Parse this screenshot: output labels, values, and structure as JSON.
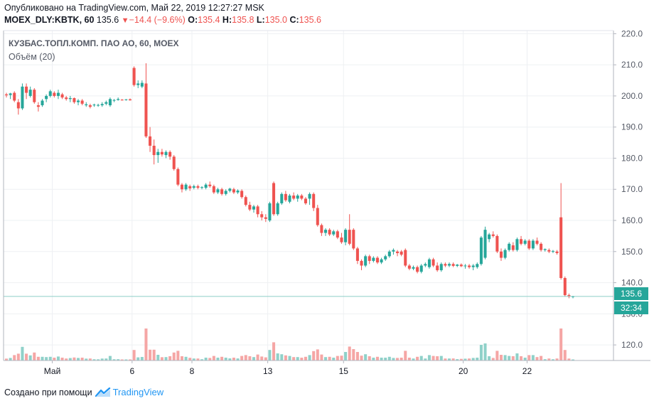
{
  "header": {
    "published": "Опубликовано на TradingView.com, Май 22, 2019 12:27:27 MSK",
    "symbol": "MOEX_DLY:KBTK, 60",
    "last": "135.6",
    "change": "−14.4 (−9.6%)",
    "o_label": "O:",
    "o_value": "135.4",
    "h_label": "H:",
    "h_value": "135.8",
    "l_label": "L:",
    "l_value": "135.0",
    "c_label": "C:",
    "c_value": "135.6"
  },
  "legend": {
    "title": "КУЗБАС.ТОПЛ.КОМП. ПАО АО, 60, MOEX",
    "volume": "Объём (20)"
  },
  "price_badge": "135.6",
  "time_badge": "32:34",
  "footer": {
    "created_with": "Создано при помощи",
    "brand": "TradingView"
  },
  "colors": {
    "up": "#26a69a",
    "down": "#ef5350",
    "up_volume": "#8fd1c9",
    "down_volume": "#f5a6a5",
    "grid": "#eef0f3",
    "price_line": "#8ccfc8"
  },
  "chart_data": {
    "type": "candlestick",
    "ylim": [
      115,
      221
    ],
    "y_ticks": [
      "120.0",
      "130.0",
      "140.0",
      "150.0",
      "160.0",
      "170.0",
      "180.0",
      "190.0",
      "200.0",
      "210.0",
      "220.0"
    ],
    "x_ticks": [
      "Май",
      "6",
      "8",
      "13",
      "15",
      "20",
      "22"
    ],
    "last_price": 135.6,
    "candles": [
      {
        "o": 200.5,
        "h": 201.0,
        "l": 199.5,
        "c": 200.2
      },
      {
        "o": 200.3,
        "h": 201.0,
        "l": 199.0,
        "c": 200.8
      },
      {
        "o": 201.0,
        "h": 201.5,
        "l": 198.0,
        "c": 198.5
      },
      {
        "o": 198.0,
        "h": 199.0,
        "l": 194.0,
        "c": 196.0
      },
      {
        "o": 196.0,
        "h": 204.0,
        "l": 195.5,
        "c": 203.0
      },
      {
        "o": 203.0,
        "h": 204.0,
        "l": 199.0,
        "c": 201.0
      },
      {
        "o": 200.0,
        "h": 203.0,
        "l": 199.5,
        "c": 202.0
      },
      {
        "o": 202.0,
        "h": 202.5,
        "l": 197.5,
        "c": 198.0
      },
      {
        "o": 197.0,
        "h": 198.0,
        "l": 195.0,
        "c": 196.5
      },
      {
        "o": 197.0,
        "h": 199.0,
        "l": 196.5,
        "c": 198.5
      },
      {
        "o": 199.0,
        "h": 200.5,
        "l": 198.0,
        "c": 200.0
      },
      {
        "o": 200.0,
        "h": 202.0,
        "l": 199.5,
        "c": 201.5
      },
      {
        "o": 201.0,
        "h": 201.5,
        "l": 199.5,
        "c": 200.0
      },
      {
        "o": 200.0,
        "h": 202.0,
        "l": 199.0,
        "c": 201.0
      },
      {
        "o": 200.5,
        "h": 201.0,
        "l": 199.0,
        "c": 199.5
      },
      {
        "o": 199.5,
        "h": 200.0,
        "l": 198.5,
        "c": 199.0
      },
      {
        "o": 199.0,
        "h": 200.0,
        "l": 198.0,
        "c": 199.3
      },
      {
        "o": 199.3,
        "h": 199.5,
        "l": 197.5,
        "c": 198.0
      },
      {
        "o": 198.0,
        "h": 199.0,
        "l": 197.0,
        "c": 198.5
      },
      {
        "o": 198.5,
        "h": 199.0,
        "l": 197.0,
        "c": 197.5
      },
      {
        "o": 197.0,
        "h": 198.0,
        "l": 196.5,
        "c": 197.3
      },
      {
        "o": 197.0,
        "h": 197.5,
        "l": 196.0,
        "c": 196.5
      },
      {
        "o": 197.0,
        "h": 197.5,
        "l": 196.5,
        "c": 197.2
      },
      {
        "o": 197.0,
        "h": 197.5,
        "l": 196.5,
        "c": 197.1
      },
      {
        "o": 197.0,
        "h": 198.0,
        "l": 196.5,
        "c": 197.4
      },
      {
        "o": 197.5,
        "h": 198.5,
        "l": 197.0,
        "c": 198.0
      },
      {
        "o": 197.0,
        "h": 199.5,
        "l": 196.5,
        "c": 199.0
      },
      {
        "o": 198.5,
        "h": 199.0,
        "l": 198.0,
        "c": 198.7
      },
      {
        "o": 198.7,
        "h": 199.5,
        "l": 198.5,
        "c": 199.0
      },
      {
        "o": 198.8,
        "h": 199.0,
        "l": 198.5,
        "c": 198.7
      },
      {
        "o": 198.8,
        "h": 199.0,
        "l": 198.5,
        "c": 198.9
      },
      {
        "o": 198.9,
        "h": 199.2,
        "l": 198.5,
        "c": 198.6
      },
      {
        "o": 209.0,
        "h": 209.5,
        "l": 203.0,
        "c": 203.5
      },
      {
        "o": 203.5,
        "h": 205.0,
        "l": 202.5,
        "c": 204.0
      },
      {
        "o": 203.0,
        "h": 205.0,
        "l": 202.5,
        "c": 204.2
      },
      {
        "o": 204.0,
        "h": 210.5,
        "l": 186.5,
        "c": 187.0
      },
      {
        "o": 187.0,
        "h": 190.0,
        "l": 182.0,
        "c": 184.0
      },
      {
        "o": 184.0,
        "h": 186.0,
        "l": 178.0,
        "c": 181.0
      },
      {
        "o": 181.0,
        "h": 183.0,
        "l": 178.5,
        "c": 182.0
      },
      {
        "o": 182.0,
        "h": 183.0,
        "l": 180.5,
        "c": 181.2
      },
      {
        "o": 181.0,
        "h": 182.5,
        "l": 180.0,
        "c": 182.0
      },
      {
        "o": 182.0,
        "h": 182.5,
        "l": 179.5,
        "c": 180.5
      },
      {
        "o": 180.5,
        "h": 181.0,
        "l": 176.0,
        "c": 176.5
      },
      {
        "o": 176.5,
        "h": 177.0,
        "l": 171.0,
        "c": 171.5
      },
      {
        "o": 171.5,
        "h": 172.0,
        "l": 169.0,
        "c": 170.0
      },
      {
        "o": 170.0,
        "h": 172.0,
        "l": 169.5,
        "c": 171.5
      },
      {
        "o": 171.0,
        "h": 171.5,
        "l": 169.5,
        "c": 170.3
      },
      {
        "o": 170.5,
        "h": 171.5,
        "l": 170.0,
        "c": 171.0
      },
      {
        "o": 171.0,
        "h": 171.5,
        "l": 170.0,
        "c": 170.5
      },
      {
        "o": 170.5,
        "h": 171.0,
        "l": 170.0,
        "c": 170.7
      },
      {
        "o": 170.5,
        "h": 172.0,
        "l": 170.0,
        "c": 171.5
      },
      {
        "o": 171.5,
        "h": 172.5,
        "l": 170.5,
        "c": 171.0
      },
      {
        "o": 171.0,
        "h": 171.5,
        "l": 168.5,
        "c": 169.0
      },
      {
        "o": 169.0,
        "h": 170.5,
        "l": 168.5,
        "c": 170.0
      },
      {
        "o": 170.0,
        "h": 170.5,
        "l": 168.0,
        "c": 168.5
      },
      {
        "o": 168.5,
        "h": 170.0,
        "l": 168.0,
        "c": 169.5
      },
      {
        "o": 169.5,
        "h": 170.5,
        "l": 169.0,
        "c": 170.2
      },
      {
        "o": 170.0,
        "h": 170.5,
        "l": 168.5,
        "c": 169.0
      },
      {
        "o": 169.0,
        "h": 170.0,
        "l": 168.5,
        "c": 169.6
      },
      {
        "o": 169.5,
        "h": 170.0,
        "l": 167.0,
        "c": 167.5
      },
      {
        "o": 167.5,
        "h": 168.0,
        "l": 164.5,
        "c": 165.0
      },
      {
        "o": 165.0,
        "h": 166.0,
        "l": 163.0,
        "c": 163.5
      },
      {
        "o": 163.5,
        "h": 165.0,
        "l": 162.5,
        "c": 164.5
      },
      {
        "o": 164.5,
        "h": 165.0,
        "l": 161.0,
        "c": 162.0
      },
      {
        "o": 162.0,
        "h": 163.0,
        "l": 160.0,
        "c": 161.0
      },
      {
        "o": 161.0,
        "h": 162.0,
        "l": 159.5,
        "c": 160.5
      },
      {
        "o": 160.0,
        "h": 166.0,
        "l": 159.5,
        "c": 165.5
      },
      {
        "o": 172.0,
        "h": 172.5,
        "l": 161.5,
        "c": 162.0
      },
      {
        "o": 162.0,
        "h": 166.0,
        "l": 161.5,
        "c": 165.5
      },
      {
        "o": 165.5,
        "h": 169.0,
        "l": 165.0,
        "c": 168.5
      },
      {
        "o": 168.5,
        "h": 169.5,
        "l": 166.0,
        "c": 166.5
      },
      {
        "o": 166.0,
        "h": 168.5,
        "l": 165.5,
        "c": 168.0
      },
      {
        "o": 168.0,
        "h": 169.0,
        "l": 166.5,
        "c": 167.0
      },
      {
        "o": 167.0,
        "h": 168.5,
        "l": 166.0,
        "c": 168.0
      },
      {
        "o": 168.0,
        "h": 168.5,
        "l": 166.5,
        "c": 167.0
      },
      {
        "o": 167.0,
        "h": 167.5,
        "l": 165.0,
        "c": 165.5
      },
      {
        "o": 167.0,
        "h": 169.0,
        "l": 165.0,
        "c": 168.5
      },
      {
        "o": 168.5,
        "h": 169.0,
        "l": 163.0,
        "c": 164.0
      },
      {
        "o": 164.0,
        "h": 165.0,
        "l": 158.0,
        "c": 158.5
      },
      {
        "o": 158.5,
        "h": 159.0,
        "l": 155.0,
        "c": 156.0
      },
      {
        "o": 156.0,
        "h": 157.5,
        "l": 155.0,
        "c": 157.0
      },
      {
        "o": 157.0,
        "h": 157.5,
        "l": 155.0,
        "c": 155.5
      },
      {
        "o": 155.5,
        "h": 157.0,
        "l": 155.0,
        "c": 156.5
      },
      {
        "o": 156.5,
        "h": 157.0,
        "l": 154.0,
        "c": 154.5
      },
      {
        "o": 154.5,
        "h": 156.0,
        "l": 152.5,
        "c": 153.0
      },
      {
        "o": 153.0,
        "h": 157.5,
        "l": 152.0,
        "c": 157.0
      },
      {
        "o": 157.0,
        "h": 162.0,
        "l": 152.0,
        "c": 152.5
      },
      {
        "o": 157.0,
        "h": 157.5,
        "l": 150.5,
        "c": 151.0
      },
      {
        "o": 151.0,
        "h": 151.5,
        "l": 146.0,
        "c": 147.0
      },
      {
        "o": 147.0,
        "h": 147.5,
        "l": 144.0,
        "c": 145.5
      },
      {
        "o": 145.5,
        "h": 149.0,
        "l": 145.0,
        "c": 148.5
      },
      {
        "o": 148.5,
        "h": 149.0,
        "l": 146.0,
        "c": 147.0
      },
      {
        "o": 147.0,
        "h": 148.5,
        "l": 146.5,
        "c": 148.0
      },
      {
        "o": 148.0,
        "h": 148.5,
        "l": 146.0,
        "c": 146.5
      },
      {
        "o": 146.5,
        "h": 148.0,
        "l": 146.0,
        "c": 147.5
      },
      {
        "o": 147.5,
        "h": 149.0,
        "l": 147.0,
        "c": 148.5
      },
      {
        "o": 148.5,
        "h": 150.5,
        "l": 148.0,
        "c": 150.0
      },
      {
        "o": 150.0,
        "h": 151.0,
        "l": 149.0,
        "c": 150.5
      },
      {
        "o": 150.0,
        "h": 150.5,
        "l": 148.5,
        "c": 149.5
      },
      {
        "o": 150.0,
        "h": 150.5,
        "l": 148.5,
        "c": 149.0
      },
      {
        "o": 150.5,
        "h": 151.0,
        "l": 145.0,
        "c": 145.5
      },
      {
        "o": 145.5,
        "h": 146.0,
        "l": 144.0,
        "c": 144.5
      },
      {
        "o": 144.5,
        "h": 145.5,
        "l": 144.0,
        "c": 145.0
      },
      {
        "o": 145.0,
        "h": 145.5,
        "l": 143.0,
        "c": 143.5
      },
      {
        "o": 143.5,
        "h": 146.0,
        "l": 143.0,
        "c": 145.5
      },
      {
        "o": 145.5,
        "h": 146.5,
        "l": 145.0,
        "c": 146.0
      },
      {
        "o": 145.0,
        "h": 148.0,
        "l": 144.5,
        "c": 147.5
      },
      {
        "o": 147.5,
        "h": 148.0,
        "l": 145.0,
        "c": 145.5
      },
      {
        "o": 145.5,
        "h": 146.5,
        "l": 143.5,
        "c": 144.0
      },
      {
        "o": 144.0,
        "h": 146.5,
        "l": 143.5,
        "c": 146.0
      },
      {
        "o": 146.0,
        "h": 146.5,
        "l": 145.0,
        "c": 145.5
      },
      {
        "o": 145.5,
        "h": 146.5,
        "l": 145.0,
        "c": 146.0
      },
      {
        "o": 146.0,
        "h": 146.5,
        "l": 145.0,
        "c": 145.4
      },
      {
        "o": 145.4,
        "h": 146.0,
        "l": 145.0,
        "c": 145.8
      },
      {
        "o": 145.8,
        "h": 146.2,
        "l": 145.0,
        "c": 145.3
      },
      {
        "o": 145.3,
        "h": 146.0,
        "l": 144.5,
        "c": 145.5
      },
      {
        "o": 145.5,
        "h": 146.0,
        "l": 144.5,
        "c": 145.0
      },
      {
        "o": 145.0,
        "h": 146.0,
        "l": 144.0,
        "c": 145.5
      },
      {
        "o": 145.0,
        "h": 146.5,
        "l": 144.5,
        "c": 146.0
      },
      {
        "o": 146.0,
        "h": 155.0,
        "l": 145.5,
        "c": 154.5
      },
      {
        "o": 148.0,
        "h": 158.0,
        "l": 147.5,
        "c": 157.0
      },
      {
        "o": 154.0,
        "h": 156.0,
        "l": 153.0,
        "c": 155.5
      },
      {
        "o": 155.5,
        "h": 156.5,
        "l": 154.5,
        "c": 155.0
      },
      {
        "o": 155.0,
        "h": 155.5,
        "l": 149.5,
        "c": 150.0
      },
      {
        "o": 150.0,
        "h": 151.0,
        "l": 147.0,
        "c": 148.0
      },
      {
        "o": 148.0,
        "h": 151.0,
        "l": 147.5,
        "c": 150.5
      },
      {
        "o": 150.5,
        "h": 153.0,
        "l": 150.0,
        "c": 152.5
      },
      {
        "o": 152.0,
        "h": 153.0,
        "l": 150.0,
        "c": 150.5
      },
      {
        "o": 150.5,
        "h": 154.5,
        "l": 150.0,
        "c": 154.0
      },
      {
        "o": 154.0,
        "h": 155.0,
        "l": 152.0,
        "c": 152.5
      },
      {
        "o": 152.5,
        "h": 154.0,
        "l": 152.0,
        "c": 153.5
      },
      {
        "o": 153.5,
        "h": 154.0,
        "l": 150.5,
        "c": 151.0
      },
      {
        "o": 151.0,
        "h": 154.0,
        "l": 150.5,
        "c": 153.5
      },
      {
        "o": 153.5,
        "h": 154.5,
        "l": 152.0,
        "c": 152.5
      },
      {
        "o": 152.5,
        "h": 153.0,
        "l": 150.0,
        "c": 150.5
      },
      {
        "o": 150.5,
        "h": 151.0,
        "l": 150.0,
        "c": 150.8
      },
      {
        "o": 150.5,
        "h": 151.0,
        "l": 149.5,
        "c": 150.0
      },
      {
        "o": 150.0,
        "h": 150.5,
        "l": 149.5,
        "c": 150.2
      },
      {
        "o": 150.0,
        "h": 150.5,
        "l": 149.0,
        "c": 149.5
      },
      {
        "o": 161.0,
        "h": 172.0,
        "l": 141.0,
        "c": 141.5
      },
      {
        "o": 141.5,
        "h": 142.0,
        "l": 135.5,
        "c": 136.0
      },
      {
        "o": 136.0,
        "h": 136.5,
        "l": 135.0,
        "c": 135.6
      },
      {
        "o": 135.4,
        "h": 135.8,
        "l": 135.0,
        "c": 135.6
      }
    ]
  }
}
